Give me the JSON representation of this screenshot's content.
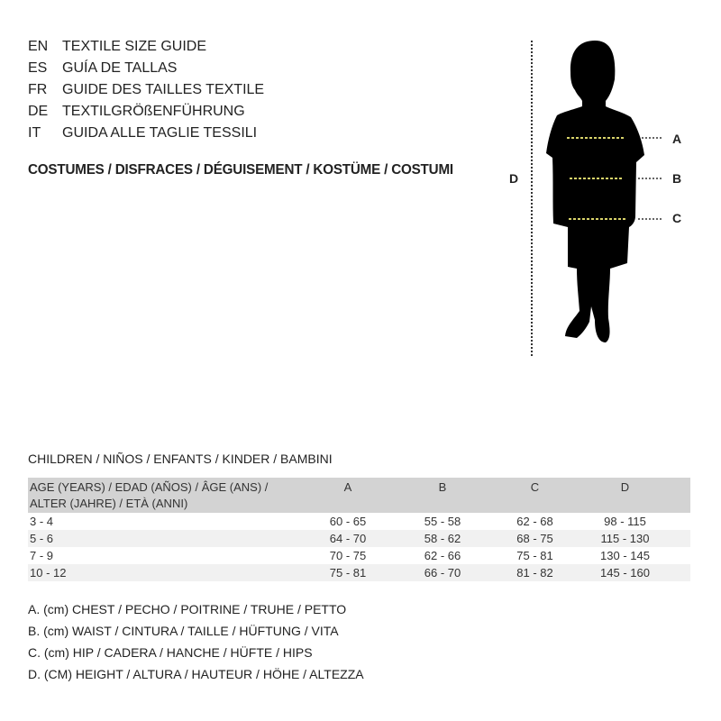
{
  "languages": [
    {
      "code": "EN",
      "text": "TEXTILE SIZE GUIDE"
    },
    {
      "code": "ES",
      "text": "GUÍA DE TALLAS"
    },
    {
      "code": "FR",
      "text": "GUIDE DES TAILLES TEXTILE"
    },
    {
      "code": "DE",
      "text": "TEXTILGRÖßENFÜHRUNG"
    },
    {
      "code": "IT",
      "text": "GUIDA ALLE TAGLIE TESSILI"
    }
  ],
  "category": "COSTUMES / DISFRACES / DÉGUISEMENT / KOSTÜME / COSTUMI",
  "figure": {
    "labels": {
      "a": "A",
      "b": "B",
      "c": "C",
      "d": "D"
    },
    "measure_line_color": "#d8d36a"
  },
  "table_title": "CHILDREN / NIÑOS / ENFANTS / KINDER / BAMBINI",
  "table": {
    "header": {
      "age_line1": "AGE (YEARS) / EDAD (AÑOS) / ÂGE (ANS) /",
      "age_line2": "ALTER (JAHRE) / ETÀ (ANNI)",
      "a": "A",
      "b": "B",
      "c": "C",
      "d": "D"
    },
    "rows": [
      [
        "3 - 4",
        "60 - 65",
        "55 - 58",
        "62 - 68",
        "98 - 115"
      ],
      [
        "5 - 6",
        "64 - 70",
        "58 - 62",
        "68 - 75",
        "115 - 130"
      ],
      [
        "7 - 9",
        "70 - 75",
        "62 - 66",
        "75 - 81",
        "130 - 145"
      ],
      [
        "10 - 12",
        "75 - 81",
        "66 - 70",
        "81 - 82",
        "145 - 160"
      ]
    ]
  },
  "legend": [
    "A. (cm) CHEST / PECHO / POITRINE / TRUHE / PETTO",
    "B. (cm) WAIST / CINTURA / TAILLE / HÜFTUNG / VITA",
    "C. (cm) HIP / CADERA / HANCHE / HÜFTE / HIPS",
    "D. (CM) HEIGHT / ALTURA / HAUTEUR / HÖHE / ALTEZZA"
  ]
}
